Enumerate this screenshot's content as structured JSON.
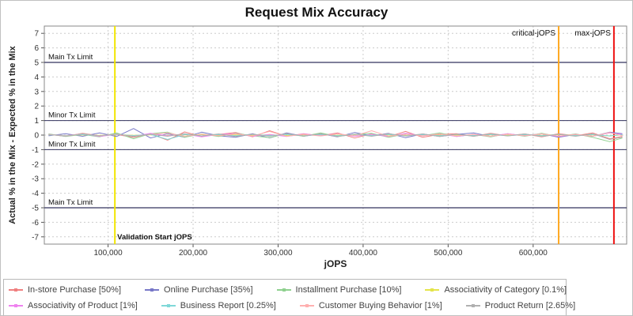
{
  "chart_data": {
    "type": "line",
    "title": "Request Mix Accuracy",
    "xlabel": "jOPS",
    "ylabel": "Actual % in the Mix - Expected % in the Mix",
    "xlim": [
      25000,
      710000
    ],
    "ylim": [
      -7.5,
      7.5
    ],
    "grid": true,
    "legend_position": "bottom",
    "x_ticks": [
      100000,
      200000,
      300000,
      400000,
      500000,
      600000
    ],
    "x_tick_labels": [
      "100,000",
      "200,000",
      "300,000",
      "400,000",
      "500,000",
      "600,000"
    ],
    "y_ticks": [
      -7,
      -6,
      -5,
      -4,
      -3,
      -2,
      -1,
      0,
      1,
      2,
      3,
      4,
      5,
      6,
      7
    ],
    "limit_lines": [
      {
        "label": "Main Tx Limit",
        "y": 5
      },
      {
        "label": "Minor Tx Limit",
        "y": 1
      },
      {
        "label": "Minor Tx Limit",
        "y": -1
      },
      {
        "label": "Main Tx Limit",
        "y": -5
      }
    ],
    "vertical_lines": [
      {
        "label": "Validation Start jOPS",
        "x": 108000,
        "color": "#f2e500",
        "label_pos": "bottom"
      },
      {
        "label": "critical-jOPS",
        "x": 630000,
        "color": "#ffa820",
        "label_pos": "top"
      },
      {
        "label": "max-jOPS",
        "x": 695000,
        "color": "#ee1111",
        "label_pos": "top"
      }
    ],
    "x": [
      30000,
      50000,
      70000,
      90000,
      110000,
      130000,
      150000,
      170000,
      190000,
      210000,
      230000,
      250000,
      270000,
      290000,
      310000,
      330000,
      350000,
      370000,
      390000,
      410000,
      430000,
      450000,
      470000,
      490000,
      510000,
      530000,
      550000,
      570000,
      590000,
      610000,
      630000,
      650000,
      670000,
      690000,
      705000
    ],
    "series": [
      {
        "name": "In-store Purchase [50%]",
        "color": "#f08080",
        "values": [
          0.05,
          -0.08,
          0.12,
          -0.05,
          0.03,
          -0.15,
          0.08,
          -0.35,
          0.22,
          -0.1,
          0.05,
          0.18,
          -0.12,
          0.3,
          -0.08,
          0.1,
          -0.05,
          0.15,
          -0.2,
          0.08,
          -0.1,
          0.25,
          -0.15,
          0.05,
          0.1,
          -0.08,
          0.12,
          -0.05,
          0.08,
          -0.12,
          0.1,
          -0.05,
          0.15,
          -0.25,
          -0.1
        ]
      },
      {
        "name": "Online Purchase [35%]",
        "color": "#7878c8",
        "values": [
          -0.05,
          0.1,
          -0.08,
          0.15,
          -0.1,
          0.45,
          -0.2,
          0.1,
          -0.15,
          0.2,
          -0.05,
          -0.15,
          0.1,
          -0.2,
          0.15,
          -0.08,
          0.1,
          -0.12,
          0.18,
          -0.05,
          0.12,
          -0.18,
          0.08,
          -0.1,
          0.05,
          0.15,
          -0.1,
          0.08,
          -0.05,
          0.1,
          -0.15,
          0.05,
          -0.08,
          0.2,
          0.1
        ]
      },
      {
        "name": "Installment Purchase [10%]",
        "color": "#8fd18f",
        "values": [
          0.08,
          -0.1,
          0.05,
          -0.12,
          0.15,
          -0.25,
          0.1,
          0.2,
          -0.15,
          0.08,
          -0.1,
          0.12,
          -0.05,
          -0.18,
          0.1,
          -0.08,
          0.15,
          -0.1,
          0.05,
          0.12,
          -0.15,
          0.08,
          -0.05,
          0.15,
          -0.1,
          0.05,
          -0.12,
          0.1,
          -0.08,
          0.12,
          -0.1,
          0.08,
          -0.15,
          -0.45,
          -0.2
        ]
      },
      {
        "name": "Associativity of Category [0.1%]",
        "color": "#e4e44a",
        "values": [
          0.02,
          -0.03,
          0.01,
          -0.02,
          0.03,
          -0.01,
          0.02,
          -0.02,
          0.01,
          0.03,
          -0.02,
          0.01,
          -0.01,
          0.02,
          -0.03,
          0.01,
          0.02,
          -0.01,
          0.03,
          -0.02,
          0.01,
          -0.02,
          0.02,
          -0.01,
          0.01,
          -0.03,
          0.02,
          -0.01,
          0.01,
          -0.02,
          0.03,
          -0.01,
          0.02,
          -0.05,
          0.01
        ]
      },
      {
        "name": "Associativity of Product [1%]",
        "color": "#ef82ef",
        "values": [
          0.03,
          -0.05,
          0.08,
          -0.1,
          0.05,
          -0.08,
          0.12,
          -0.05,
          0.08,
          -0.12,
          0.05,
          0.1,
          -0.08,
          0.05,
          -0.1,
          0.08,
          -0.05,
          0.1,
          -0.08,
          0.05,
          -0.1,
          0.12,
          -0.05,
          0.08,
          -0.1,
          0.05,
          -0.08,
          0.1,
          -0.05,
          0.08,
          -0.1,
          0.05,
          -0.08,
          0.15,
          0.05
        ]
      },
      {
        "name": "Business Report [0.25%]",
        "color": "#7fd8d8",
        "values": [
          0.02,
          -0.04,
          0.03,
          -0.05,
          0.04,
          -0.03,
          0.05,
          -0.3,
          0.04,
          -0.05,
          0.03,
          -0.04,
          0.05,
          -0.03,
          0.04,
          -0.05,
          0.03,
          -0.04,
          0.05,
          -0.03,
          0.04,
          -0.05,
          0.03,
          -0.04,
          0.05,
          -0.03,
          0.04,
          -0.05,
          0.03,
          -0.04,
          0.05,
          -0.03,
          0.04,
          -0.06,
          0.03
        ]
      },
      {
        "name": "Customer Buying Behavior [1%]",
        "color": "#ffb0b0",
        "values": [
          0.04,
          -0.06,
          0.08,
          -0.05,
          0.06,
          -0.08,
          0.05,
          0.15,
          -0.08,
          0.06,
          -0.05,
          0.08,
          -0.06,
          0.25,
          -0.08,
          0.05,
          -0.06,
          0.08,
          -0.05,
          0.3,
          -0.08,
          0.06,
          -0.05,
          0.08,
          -0.06,
          0.05,
          -0.08,
          0.06,
          -0.05,
          0.08,
          -0.06,
          0.05,
          -0.08,
          0.18,
          -0.05
        ]
      },
      {
        "name": "Product Return [2.65%]",
        "color": "#b0b0b0",
        "values": [
          0.06,
          -0.08,
          0.1,
          -0.06,
          0.08,
          -0.1,
          0.06,
          -0.08,
          0.1,
          -0.06,
          0.08,
          -0.1,
          0.06,
          -0.08,
          0.1,
          -0.06,
          0.08,
          -0.1,
          0.06,
          -0.08,
          0.1,
          -0.06,
          0.08,
          -0.1,
          0.06,
          -0.08,
          0.1,
          -0.06,
          0.08,
          -0.1,
          0.06,
          -0.08,
          0.1,
          -0.3,
          -0.15
        ]
      }
    ]
  },
  "legend": {
    "rows": [
      [
        {
          "label": "In-store Purchase [50%]",
          "color": "#f08080"
        },
        {
          "label": "Online Purchase [35%]",
          "color": "#7878c8"
        },
        {
          "label": "Installment Purchase [10%]",
          "color": "#8fd18f"
        },
        {
          "label": "Associativity of Category [0.1%]",
          "color": "#e4e44a"
        }
      ],
      [
        {
          "label": "Associativity of Product [1%]",
          "color": "#ef82ef"
        },
        {
          "label": "Business Report [0.25%]",
          "color": "#7fd8d8"
        },
        {
          "label": "Customer Buying Behavior [1%]",
          "color": "#ffb0b0"
        },
        {
          "label": "Product Return [2.65%]",
          "color": "#b0b0b0"
        }
      ]
    ]
  }
}
